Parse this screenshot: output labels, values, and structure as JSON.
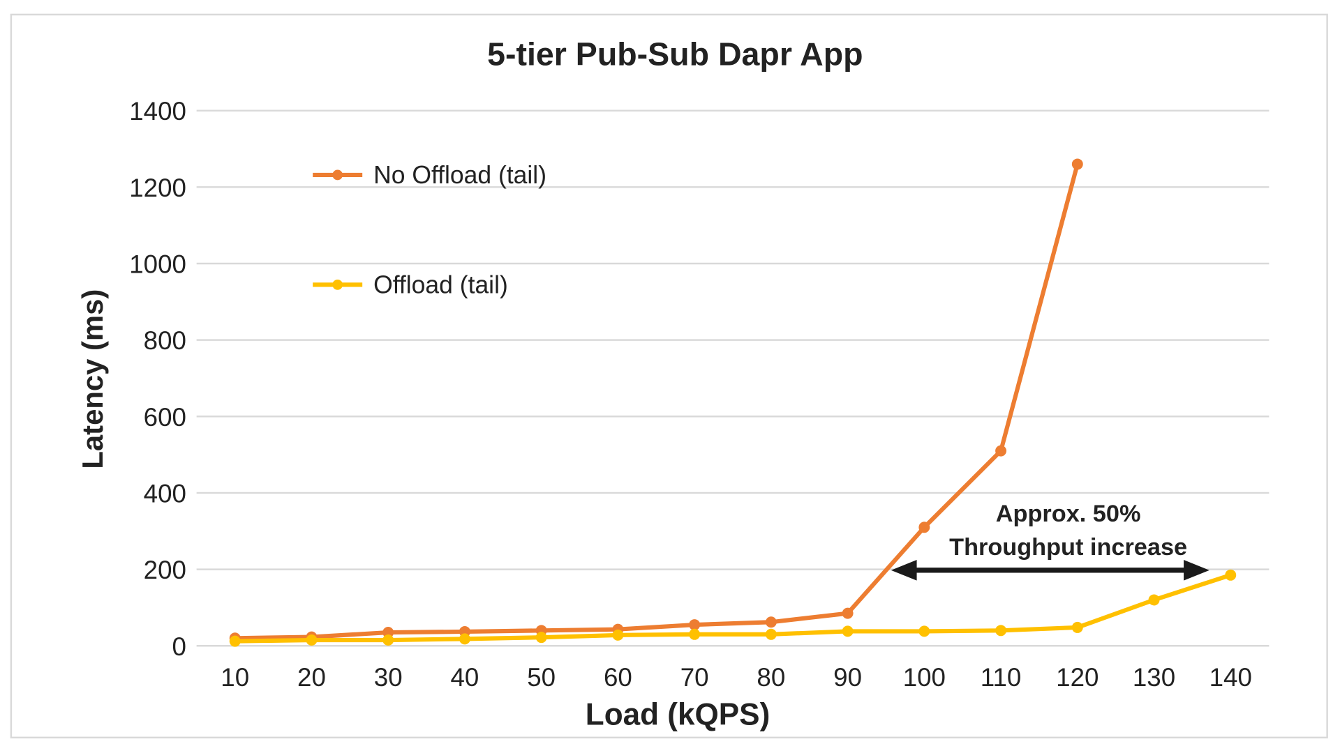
{
  "chart_data": {
    "type": "line",
    "title": "5-tier Pub-Sub Dapr App",
    "xlabel": "Load (kQPS)",
    "ylabel": "Latency (ms)",
    "x": [
      10,
      20,
      30,
      40,
      50,
      60,
      70,
      80,
      90,
      100,
      110,
      120,
      130,
      140
    ],
    "x_tick_labels": [
      "10",
      "20",
      "30",
      "40",
      "50",
      "60",
      "70",
      "80",
      "90",
      "100",
      "110",
      "120",
      "130",
      "140"
    ],
    "y_tick_labels": [
      "0",
      "200",
      "400",
      "600",
      "800",
      "1000",
      "1200",
      "1400"
    ],
    "y_ticks": [
      0,
      200,
      400,
      600,
      800,
      1000,
      1200,
      1400
    ],
    "ylim": [
      0,
      1400
    ],
    "grid": true,
    "legend_placement": "top-left",
    "series": [
      {
        "name": "No Offload (tail)",
        "color": "#ED7D31",
        "values": [
          20,
          23,
          35,
          37,
          40,
          43,
          55,
          62,
          85,
          310,
          510,
          1260,
          null,
          null
        ]
      },
      {
        "name": "Offload (tail)",
        "color": "#FFC000",
        "values": [
          12,
          15,
          15,
          18,
          22,
          28,
          30,
          30,
          38,
          38,
          40,
          48,
          120,
          185
        ]
      }
    ],
    "annotation": {
      "lines": [
        "Approx. 50%",
        "Throughput increase"
      ],
      "arrow_from_x": 95,
      "arrow_to_x": 137,
      "arrow_y": 200
    }
  }
}
